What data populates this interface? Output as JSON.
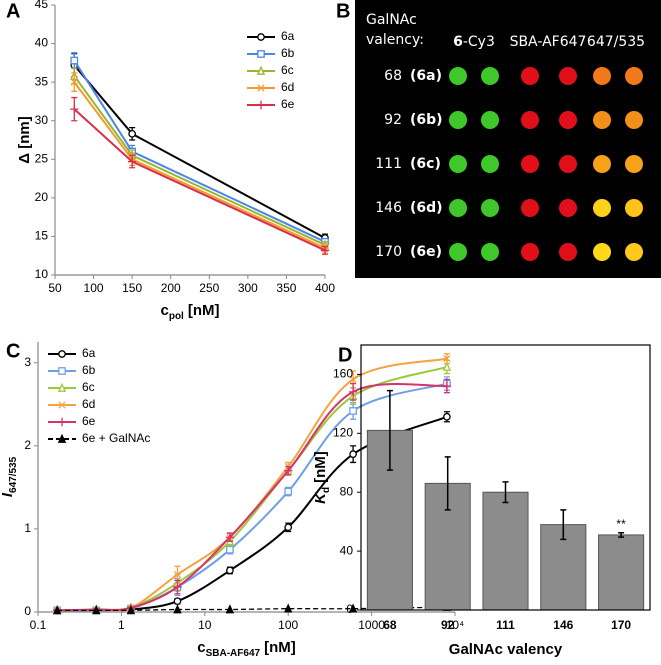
{
  "chart_data": [
    {
      "type": "line",
      "panel": "A",
      "x": [
        75,
        150,
        400
      ],
      "xlim": [
        50,
        400
      ],
      "xticks": [
        50,
        100,
        150,
        200,
        250,
        300,
        350,
        400
      ],
      "ylim": [
        10,
        45
      ],
      "yticks": [
        10,
        15,
        20,
        25,
        30,
        35,
        40,
        45
      ],
      "x_label": "c",
      "x_label_sub": "pol",
      "x_label_unit": "[nM]",
      "y_label": "Δ [nm]",
      "series": [
        {
          "name": "6a",
          "color": "#000000",
          "marker": "circle",
          "values": [
            37.2,
            28.3,
            14.8
          ],
          "errors": [
            1.5,
            0.8,
            0.5
          ]
        },
        {
          "name": "6b",
          "color": "#4a86e8",
          "marker": "square",
          "values": [
            37.8,
            26.0,
            14.3
          ],
          "errors": [
            1.0,
            0.8,
            0.4
          ]
        },
        {
          "name": "6c",
          "color": "#9ab530",
          "marker": "triangle",
          "values": [
            35.8,
            25.5,
            13.9
          ],
          "errors": [
            1.0,
            0.7,
            0.4
          ]
        },
        {
          "name": "6d",
          "color": "#f39a2e",
          "marker": "x",
          "values": [
            35.0,
            25.0,
            13.5
          ],
          "errors": [
            1.2,
            0.8,
            0.5
          ]
        },
        {
          "name": "6e",
          "color": "#d9304a",
          "marker": "plus",
          "values": [
            31.5,
            24.7,
            13.2
          ],
          "errors": [
            1.5,
            0.8,
            0.5
          ]
        }
      ]
    },
    {
      "type": "grid",
      "panel": "B",
      "header": [
        "GalNAc",
        "valency:"
      ],
      "columns": [
        {
          "bold": "6",
          "text": "-Cy3"
        },
        {
          "text": "SBA-AF647"
        },
        {
          "text": "647/535"
        }
      ],
      "rows": [
        {
          "valency": "68",
          "compound": "(6a)",
          "colors": [
            "#3ec82a",
            "#3ec82a",
            "#e0101a",
            "#e0101a",
            "#f07a1a",
            "#f07a1a"
          ]
        },
        {
          "valency": "92",
          "compound": "(6b)",
          "colors": [
            "#3ec82a",
            "#3ec82a",
            "#e0101a",
            "#e0101a",
            "#f2901a",
            "#f2901a"
          ]
        },
        {
          "valency": "111",
          "compound": "(6c)",
          "colors": [
            "#3ec82a",
            "#3ec82a",
            "#e0101a",
            "#e0101a",
            "#f5a21a",
            "#f5a21a"
          ]
        },
        {
          "valency": "146",
          "compound": "(6d)",
          "colors": [
            "#3ec82a",
            "#3ec82a",
            "#e0101a",
            "#e0101a",
            "#ffd21a",
            "#ffc21a"
          ]
        },
        {
          "valency": "170",
          "compound": "(6e)",
          "colors": [
            "#3ec82a",
            "#3ec82a",
            "#e0101a",
            "#e0101a",
            "#ffd81a",
            "#ffc81a"
          ]
        }
      ]
    },
    {
      "type": "line",
      "panel": "C",
      "log_x": true,
      "smooth": true,
      "x": [
        0.17,
        0.5,
        1.3,
        4.7,
        20,
        100,
        600,
        8000
      ],
      "xlim": [
        0.1,
        10000
      ],
      "xticks": [
        0.1,
        1,
        10,
        100,
        1000,
        {
          "value": 10000,
          "label": "10⁴"
        }
      ],
      "ylim": [
        0,
        3.25
      ],
      "yticks": [
        0,
        1,
        2,
        3
      ],
      "x_label": "c",
      "x_label_sub": "SBA-AF647",
      "x_label_unit": "[nM]",
      "y_label": "I",
      "y_label_sub": "647/535",
      "y_label_italic": true,
      "series": [
        {
          "name": "6a",
          "color": "#000000",
          "marker": "circle",
          "values": [
            0.02,
            0.02,
            0.03,
            0.13,
            0.5,
            1.02,
            1.9,
            2.35
          ],
          "errors": [
            0.01,
            0.01,
            0.01,
            0.03,
            0.04,
            0.05,
            0.1,
            0.06
          ]
        },
        {
          "name": "6b",
          "color": "#6f9fe8",
          "marker": "square",
          "values": [
            0.02,
            0.02,
            0.04,
            0.3,
            0.75,
            1.45,
            2.42,
            2.75
          ],
          "errors": [
            0.01,
            0.01,
            0.01,
            0.1,
            0.05,
            0.05,
            0.1,
            0.08
          ]
        },
        {
          "name": "6c",
          "color": "#9cc93a",
          "marker": "triangle",
          "values": [
            0.02,
            0.03,
            0.05,
            0.35,
            0.85,
            1.7,
            2.6,
            2.95
          ],
          "errors": [
            0.01,
            0.01,
            0.01,
            0.1,
            0.05,
            0.05,
            0.1,
            0.08
          ]
        },
        {
          "name": "6d",
          "color": "#f4a340",
          "marker": "x",
          "values": [
            0.02,
            0.03,
            0.05,
            0.45,
            0.9,
            1.75,
            2.8,
            3.05
          ],
          "errors": [
            0.01,
            0.01,
            0.01,
            0.1,
            0.05,
            0.05,
            0.1,
            0.06
          ]
        },
        {
          "name": "6e",
          "color": "#d6336b",
          "marker": "plus",
          "values": [
            0.02,
            0.03,
            0.05,
            0.3,
            0.9,
            1.7,
            2.65,
            2.72
          ],
          "errors": [
            0.01,
            0.01,
            0.01,
            0.08,
            0.05,
            0.05,
            0.1,
            0.08
          ]
        },
        {
          "name": "6e + GalNAc",
          "color": "#000000",
          "marker": "triangle-filled",
          "dash": true,
          "values": [
            0.02,
            0.02,
            0.02,
            0.03,
            0.03,
            0.04,
            0.04,
            0.06
          ]
        }
      ]
    },
    {
      "type": "bar",
      "panel": "D",
      "categories": [
        "68",
        "92",
        "111",
        "146",
        "170"
      ],
      "values": [
        122,
        86,
        80,
        58,
        51
      ],
      "errors": [
        27,
        18,
        7,
        10,
        1.5
      ],
      "color": "#8c8c8c",
      "ylim": [
        0,
        180
      ],
      "yticks": [
        0,
        40,
        80,
        120,
        160
      ],
      "x_label": "GalNAc valency",
      "y_label": "K",
      "y_label_sub": "d",
      "y_label_unit": "[nM]",
      "y_label_italic": true,
      "annotation": "**"
    }
  ]
}
